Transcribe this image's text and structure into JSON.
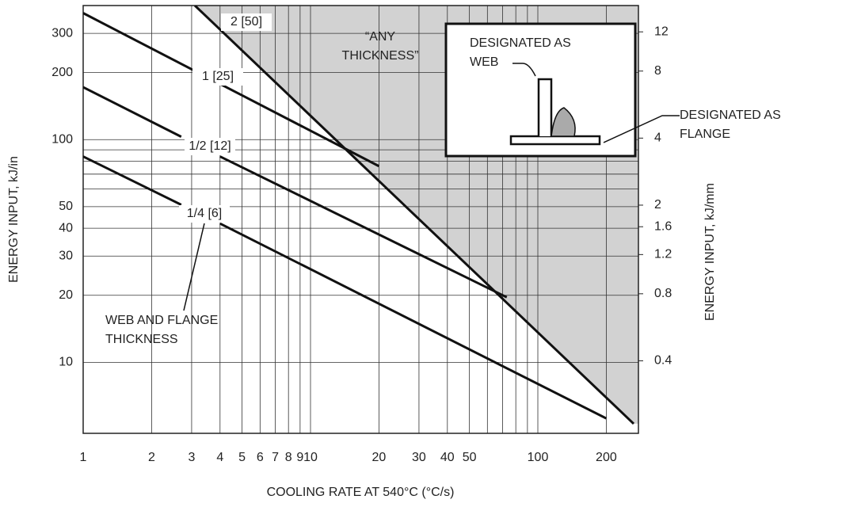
{
  "chart_data": {
    "type": "line",
    "x_label": "COOLING RATE AT 540°C (°C/s)",
    "y_label": "ENERGY INPUT, kJ/in",
    "y2_label": "ENERGY INPUT, kJ/mm",
    "xlog": true,
    "ylog": true,
    "grid": true,
    "xlim": [
      1,
      277
    ],
    "ylim": [
      4.8,
      400
    ],
    "y2lim": [
      0.189,
      15.75
    ],
    "xticks": [
      1,
      2,
      3,
      4,
      5,
      6,
      7,
      8,
      9,
      10,
      20,
      30,
      40,
      50,
      100,
      200
    ],
    "xminor": [
      60,
      70,
      80,
      90
    ],
    "yticks": [
      10,
      20,
      30,
      40,
      50,
      100,
      200,
      300
    ],
    "yminor": [
      60,
      70,
      80,
      90
    ],
    "y2ticks": [
      0.4,
      0.8,
      1.2,
      1.6,
      2,
      4,
      8,
      12
    ],
    "shade_color": "#d2d2d2",
    "series": [
      {
        "name": "2 [50]",
        "color": "#111111",
        "x": [
          3.1,
          264
        ],
        "values": [
          400,
          5.3
        ]
      },
      {
        "name": "1 [25]",
        "color": "#111111",
        "x": [
          1,
          20
        ],
        "values": [
          370,
          76
        ]
      },
      {
        "name": "1/2 [12]",
        "color": "#111111",
        "x": [
          1,
          2.7,
          3.5,
          4,
          73
        ],
        "values": [
          172,
          103,
          null,
          84,
          19.6
        ]
      },
      {
        "name": "1/4 [6]",
        "color": "#111111",
        "x": [
          1,
          2.7,
          3.5,
          4,
          200
        ],
        "values": [
          84,
          51,
          null,
          42,
          5.6
        ]
      }
    ],
    "annotations": [
      [
        "WEB AND FLANGE",
        "THICKNESS"
      ],
      [
        "“ANY",
        "THICKNESS”"
      ],
      [
        "DESIGNATED AS",
        "WEB"
      ],
      [
        "DESIGNATED AS",
        "FLANGE"
      ]
    ]
  }
}
